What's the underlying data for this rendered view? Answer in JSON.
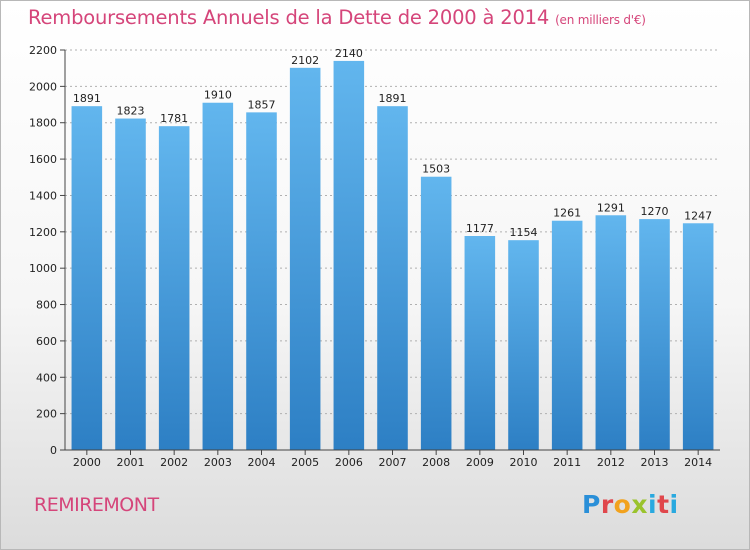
{
  "chart_data": {
    "type": "bar",
    "title": "Remboursements Annuels de la Dette de 2000 à 2014",
    "subtitle": "(en milliers d'€)",
    "categories": [
      "2000",
      "2001",
      "2002",
      "2003",
      "2004",
      "2005",
      "2006",
      "2007",
      "2008",
      "2009",
      "2010",
      "2011",
      "2012",
      "2013",
      "2014"
    ],
    "values": [
      1891,
      1823,
      1781,
      1910,
      1857,
      2102,
      2140,
      1891,
      1503,
      1177,
      1154,
      1261,
      1291,
      1270,
      1247
    ],
    "ylim": [
      0,
      2200
    ],
    "yticks": [
      0,
      200,
      400,
      600,
      800,
      1000,
      1200,
      1400,
      1600,
      1800,
      2000,
      2200
    ],
    "grid": "horizontal-dotted",
    "bar_color_top": "#62b6ee",
    "bar_color_bottom": "#2d7fc4"
  },
  "footer": {
    "city": "REMIREMONT",
    "logo": {
      "p": "P",
      "r": "r",
      "o": "o",
      "x": "x",
      "i": "i",
      "t": "t",
      "i2": "i"
    }
  },
  "colors": {
    "title": "#d5457a",
    "background_top": "#ffffff",
    "background_bottom": "#dcdcdc"
  }
}
